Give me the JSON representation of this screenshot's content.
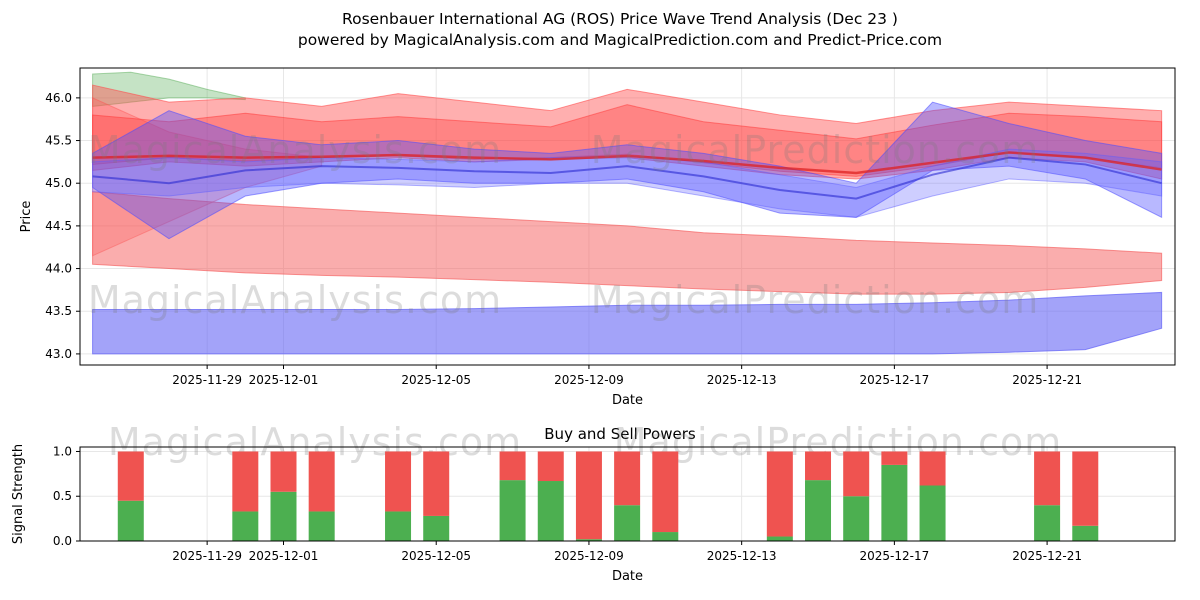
{
  "page": {
    "title_line1": "Rosenbauer International AG (ROS) Price Wave Trend Analysis (Dec 23 )",
    "title_line2": "powered by MagicalAnalysis.com and MagicalPrediction.com and Predict-Price.com"
  },
  "watermarks": {
    "analysis": "MagicalAnalysis.com",
    "prediction": "MagicalPrediction.com"
  },
  "chart_data": [
    {
      "type": "area",
      "title": "",
      "xlabel": "Date",
      "ylabel": "Price",
      "ylim": [
        42.87,
        46.35
      ],
      "day_range": [
        -0.33,
        28.35
      ],
      "grid": true,
      "yticks": [
        {
          "label": "43.0",
          "value": 43.0
        },
        {
          "label": "43.5",
          "value": 43.5
        },
        {
          "label": "44.0",
          "value": 44.0
        },
        {
          "label": "44.5",
          "value": 44.5
        },
        {
          "label": "45.0",
          "value": 45.0
        },
        {
          "label": "45.5",
          "value": 45.5
        },
        {
          "label": "46.0",
          "value": 46.0
        }
      ],
      "xticks": [
        {
          "label": "2025-11-29",
          "day": 3
        },
        {
          "label": "2025-12-01",
          "day": 5
        },
        {
          "label": "2025-12-05",
          "day": 9
        },
        {
          "label": "2025-12-09",
          "day": 13
        },
        {
          "label": "2025-12-13",
          "day": 17
        },
        {
          "label": "2025-12-17",
          "day": 21
        },
        {
          "label": "2025-12-21",
          "day": 25
        }
      ],
      "bands": [
        {
          "name": "green-top-left",
          "color": "#5aae5a",
          "opacity": 0.35,
          "x": [
            0,
            1,
            2,
            3,
            4
          ],
          "upper": [
            46.28,
            46.3,
            46.22,
            46.1,
            46.0
          ],
          "lower": [
            45.9,
            45.95,
            46.0,
            46.0,
            45.98
          ]
        },
        {
          "name": "red-left-wedge",
          "color": "#ff5555",
          "opacity": 0.3,
          "x": [
            0,
            2,
            4,
            6
          ],
          "upper": [
            46.0,
            45.6,
            45.4,
            45.3
          ],
          "lower": [
            44.15,
            44.55,
            44.95,
            45.2
          ]
        },
        {
          "name": "red-upper-main",
          "color": "#ff4d4d",
          "opacity": 0.45,
          "x": [
            0,
            2,
            4,
            6,
            8,
            10,
            12,
            14,
            16,
            18,
            20,
            22,
            24,
            26,
            28
          ],
          "upper": [
            46.15,
            45.95,
            46.0,
            45.9,
            46.05,
            45.95,
            45.85,
            46.1,
            45.95,
            45.8,
            45.7,
            45.85,
            45.95,
            45.9,
            45.85
          ],
          "lower": [
            45.15,
            45.25,
            45.2,
            45.25,
            45.3,
            45.25,
            45.28,
            45.3,
            45.2,
            45.1,
            45.05,
            45.15,
            45.3,
            45.25,
            45.05
          ]
        },
        {
          "name": "red-upper-core",
          "color": "#ff3333",
          "opacity": 0.35,
          "x": [
            0,
            2,
            4,
            6,
            8,
            10,
            12,
            14,
            16,
            18,
            20,
            22,
            24,
            26,
            28
          ],
          "upper": [
            45.8,
            45.72,
            45.82,
            45.72,
            45.78,
            45.72,
            45.66,
            45.92,
            45.72,
            45.62,
            45.52,
            45.68,
            45.82,
            45.78,
            45.72
          ],
          "lower": [
            45.22,
            45.3,
            45.26,
            45.3,
            45.32,
            45.28,
            45.3,
            45.34,
            45.24,
            45.14,
            45.08,
            45.2,
            45.36,
            45.3,
            45.18
          ]
        },
        {
          "name": "pink-declining",
          "color": "#f55b5b",
          "opacity": 0.5,
          "x": [
            0,
            2,
            4,
            6,
            8,
            10,
            12,
            14,
            16,
            18,
            20,
            22,
            24,
            26,
            28
          ],
          "upper": [
            44.9,
            44.82,
            44.75,
            44.7,
            44.65,
            44.6,
            44.55,
            44.5,
            44.42,
            44.38,
            44.33,
            44.3,
            44.27,
            44.23,
            44.18
          ],
          "lower": [
            44.05,
            44.0,
            43.95,
            43.92,
            43.9,
            43.87,
            43.84,
            43.8,
            43.76,
            43.73,
            43.7,
            43.7,
            43.72,
            43.78,
            43.86
          ]
        },
        {
          "name": "blue-main",
          "color": "#4d4dff",
          "opacity": 0.4,
          "x": [
            0,
            2,
            4,
            6,
            8,
            10,
            12,
            14,
            16,
            18,
            20,
            22,
            24,
            26,
            28
          ],
          "upper": [
            45.35,
            45.85,
            45.55,
            45.45,
            45.5,
            45.4,
            45.35,
            45.45,
            45.35,
            45.2,
            45.0,
            45.95,
            45.7,
            45.5,
            45.35
          ],
          "lower": [
            44.95,
            44.35,
            44.85,
            45.0,
            45.05,
            45.0,
            45.0,
            45.05,
            44.9,
            44.65,
            44.6,
            45.15,
            45.2,
            45.05,
            44.6
          ]
        },
        {
          "name": "blue-secondary",
          "color": "#5c5cff",
          "opacity": 0.3,
          "x": [
            0,
            2,
            4,
            6,
            8,
            10,
            12,
            14,
            16,
            18,
            20,
            22,
            24,
            26,
            28
          ],
          "upper": [
            45.25,
            45.3,
            45.25,
            45.3,
            45.28,
            45.25,
            45.3,
            45.32,
            45.25,
            45.1,
            44.95,
            45.2,
            45.4,
            45.35,
            45.25
          ],
          "lower": [
            44.9,
            44.85,
            44.95,
            45.0,
            44.98,
            44.95,
            45.0,
            45.0,
            44.85,
            44.7,
            44.6,
            44.85,
            45.05,
            45.0,
            44.85
          ]
        },
        {
          "name": "blue-bottom",
          "color": "#6666f5",
          "opacity": 0.6,
          "x": [
            0,
            2,
            4,
            6,
            8,
            10,
            12,
            14,
            16,
            18,
            20,
            22,
            24,
            26,
            28
          ],
          "upper": [
            43.52,
            43.52,
            43.52,
            43.52,
            43.52,
            43.53,
            43.55,
            43.57,
            43.57,
            43.58,
            43.58,
            43.6,
            43.63,
            43.68,
            43.72
          ],
          "lower": [
            43.0,
            43.0,
            43.0,
            43.0,
            43.0,
            43.0,
            43.0,
            43.0,
            43.0,
            43.0,
            43.0,
            43.0,
            43.02,
            43.05,
            43.3
          ]
        }
      ],
      "lines": [
        {
          "name": "red-trend",
          "color": "#dd2222",
          "width": 2.5,
          "opacity": 0.75,
          "x": [
            0,
            2,
            4,
            6,
            8,
            10,
            12,
            14,
            16,
            18,
            20,
            22,
            24,
            26,
            28
          ],
          "y": [
            45.3,
            45.32,
            45.3,
            45.31,
            45.33,
            45.3,
            45.28,
            45.32,
            45.26,
            45.18,
            45.12,
            45.24,
            45.36,
            45.3,
            45.16
          ]
        },
        {
          "name": "blue-trend",
          "color": "#2a2ad0",
          "width": 2,
          "opacity": 0.6,
          "x": [
            0,
            2,
            4,
            6,
            8,
            10,
            12,
            14,
            16,
            18,
            20,
            22,
            24,
            26,
            28
          ],
          "y": [
            45.08,
            45.0,
            45.15,
            45.2,
            45.18,
            45.14,
            45.12,
            45.2,
            45.08,
            44.92,
            44.82,
            45.1,
            45.3,
            45.22,
            45.0
          ]
        }
      ]
    },
    {
      "type": "bar",
      "title": "Buy and Sell Powers",
      "xlabel": "Date",
      "ylabel": "Signal Strength",
      "ylim": [
        0,
        1.05
      ],
      "day_range": [
        -0.33,
        28.35
      ],
      "grid": true,
      "colors": {
        "buy": "#4caf50",
        "sell": "#ef5350"
      },
      "yticks": [
        {
          "label": "0.0",
          "value": 0.0
        },
        {
          "label": "0.5",
          "value": 0.5
        },
        {
          "label": "1.0",
          "value": 1.0
        }
      ],
      "xticks": [
        {
          "label": "2025-11-29",
          "day": 3
        },
        {
          "label": "2025-12-01",
          "day": 5
        },
        {
          "label": "2025-12-05",
          "day": 9
        },
        {
          "label": "2025-12-09",
          "day": 13
        },
        {
          "label": "2025-12-13",
          "day": 17
        },
        {
          "label": "2025-12-17",
          "day": 21
        },
        {
          "label": "2025-12-21",
          "day": 25
        }
      ],
      "bars": [
        {
          "date": "2025-11-27",
          "day": 1,
          "buy": 0.45,
          "sell": 0.55
        },
        {
          "date": "2025-11-30",
          "day": 4,
          "buy": 0.33,
          "sell": 0.67
        },
        {
          "date": "2025-12-01",
          "day": 5,
          "buy": 0.55,
          "sell": 0.45
        },
        {
          "date": "2025-12-02",
          "day": 6,
          "buy": 0.33,
          "sell": 0.67
        },
        {
          "date": "2025-12-04",
          "day": 8,
          "buy": 0.33,
          "sell": 0.67
        },
        {
          "date": "2025-12-05",
          "day": 9,
          "buy": 0.28,
          "sell": 0.72
        },
        {
          "date": "2025-12-07",
          "day": 11,
          "buy": 0.68,
          "sell": 0.32
        },
        {
          "date": "2025-12-08",
          "day": 12,
          "buy": 0.67,
          "sell": 0.33
        },
        {
          "date": "2025-12-09",
          "day": 13,
          "buy": 0.02,
          "sell": 0.98
        },
        {
          "date": "2025-12-10",
          "day": 14,
          "buy": 0.4,
          "sell": 0.6
        },
        {
          "date": "2025-12-11",
          "day": 15,
          "buy": 0.1,
          "sell": 0.9
        },
        {
          "date": "2025-12-14",
          "day": 18,
          "buy": 0.05,
          "sell": 0.95
        },
        {
          "date": "2025-12-15",
          "day": 19,
          "buy": 0.68,
          "sell": 0.32
        },
        {
          "date": "2025-12-16",
          "day": 20,
          "buy": 0.5,
          "sell": 0.5
        },
        {
          "date": "2025-12-17",
          "day": 21,
          "buy": 0.85,
          "sell": 0.15
        },
        {
          "date": "2025-12-18",
          "day": 22,
          "buy": 0.62,
          "sell": 0.38
        },
        {
          "date": "2025-12-21",
          "day": 25,
          "buy": 0.4,
          "sell": 0.6
        },
        {
          "date": "2025-12-22",
          "day": 26,
          "buy": 0.17,
          "sell": 0.83
        }
      ]
    }
  ]
}
